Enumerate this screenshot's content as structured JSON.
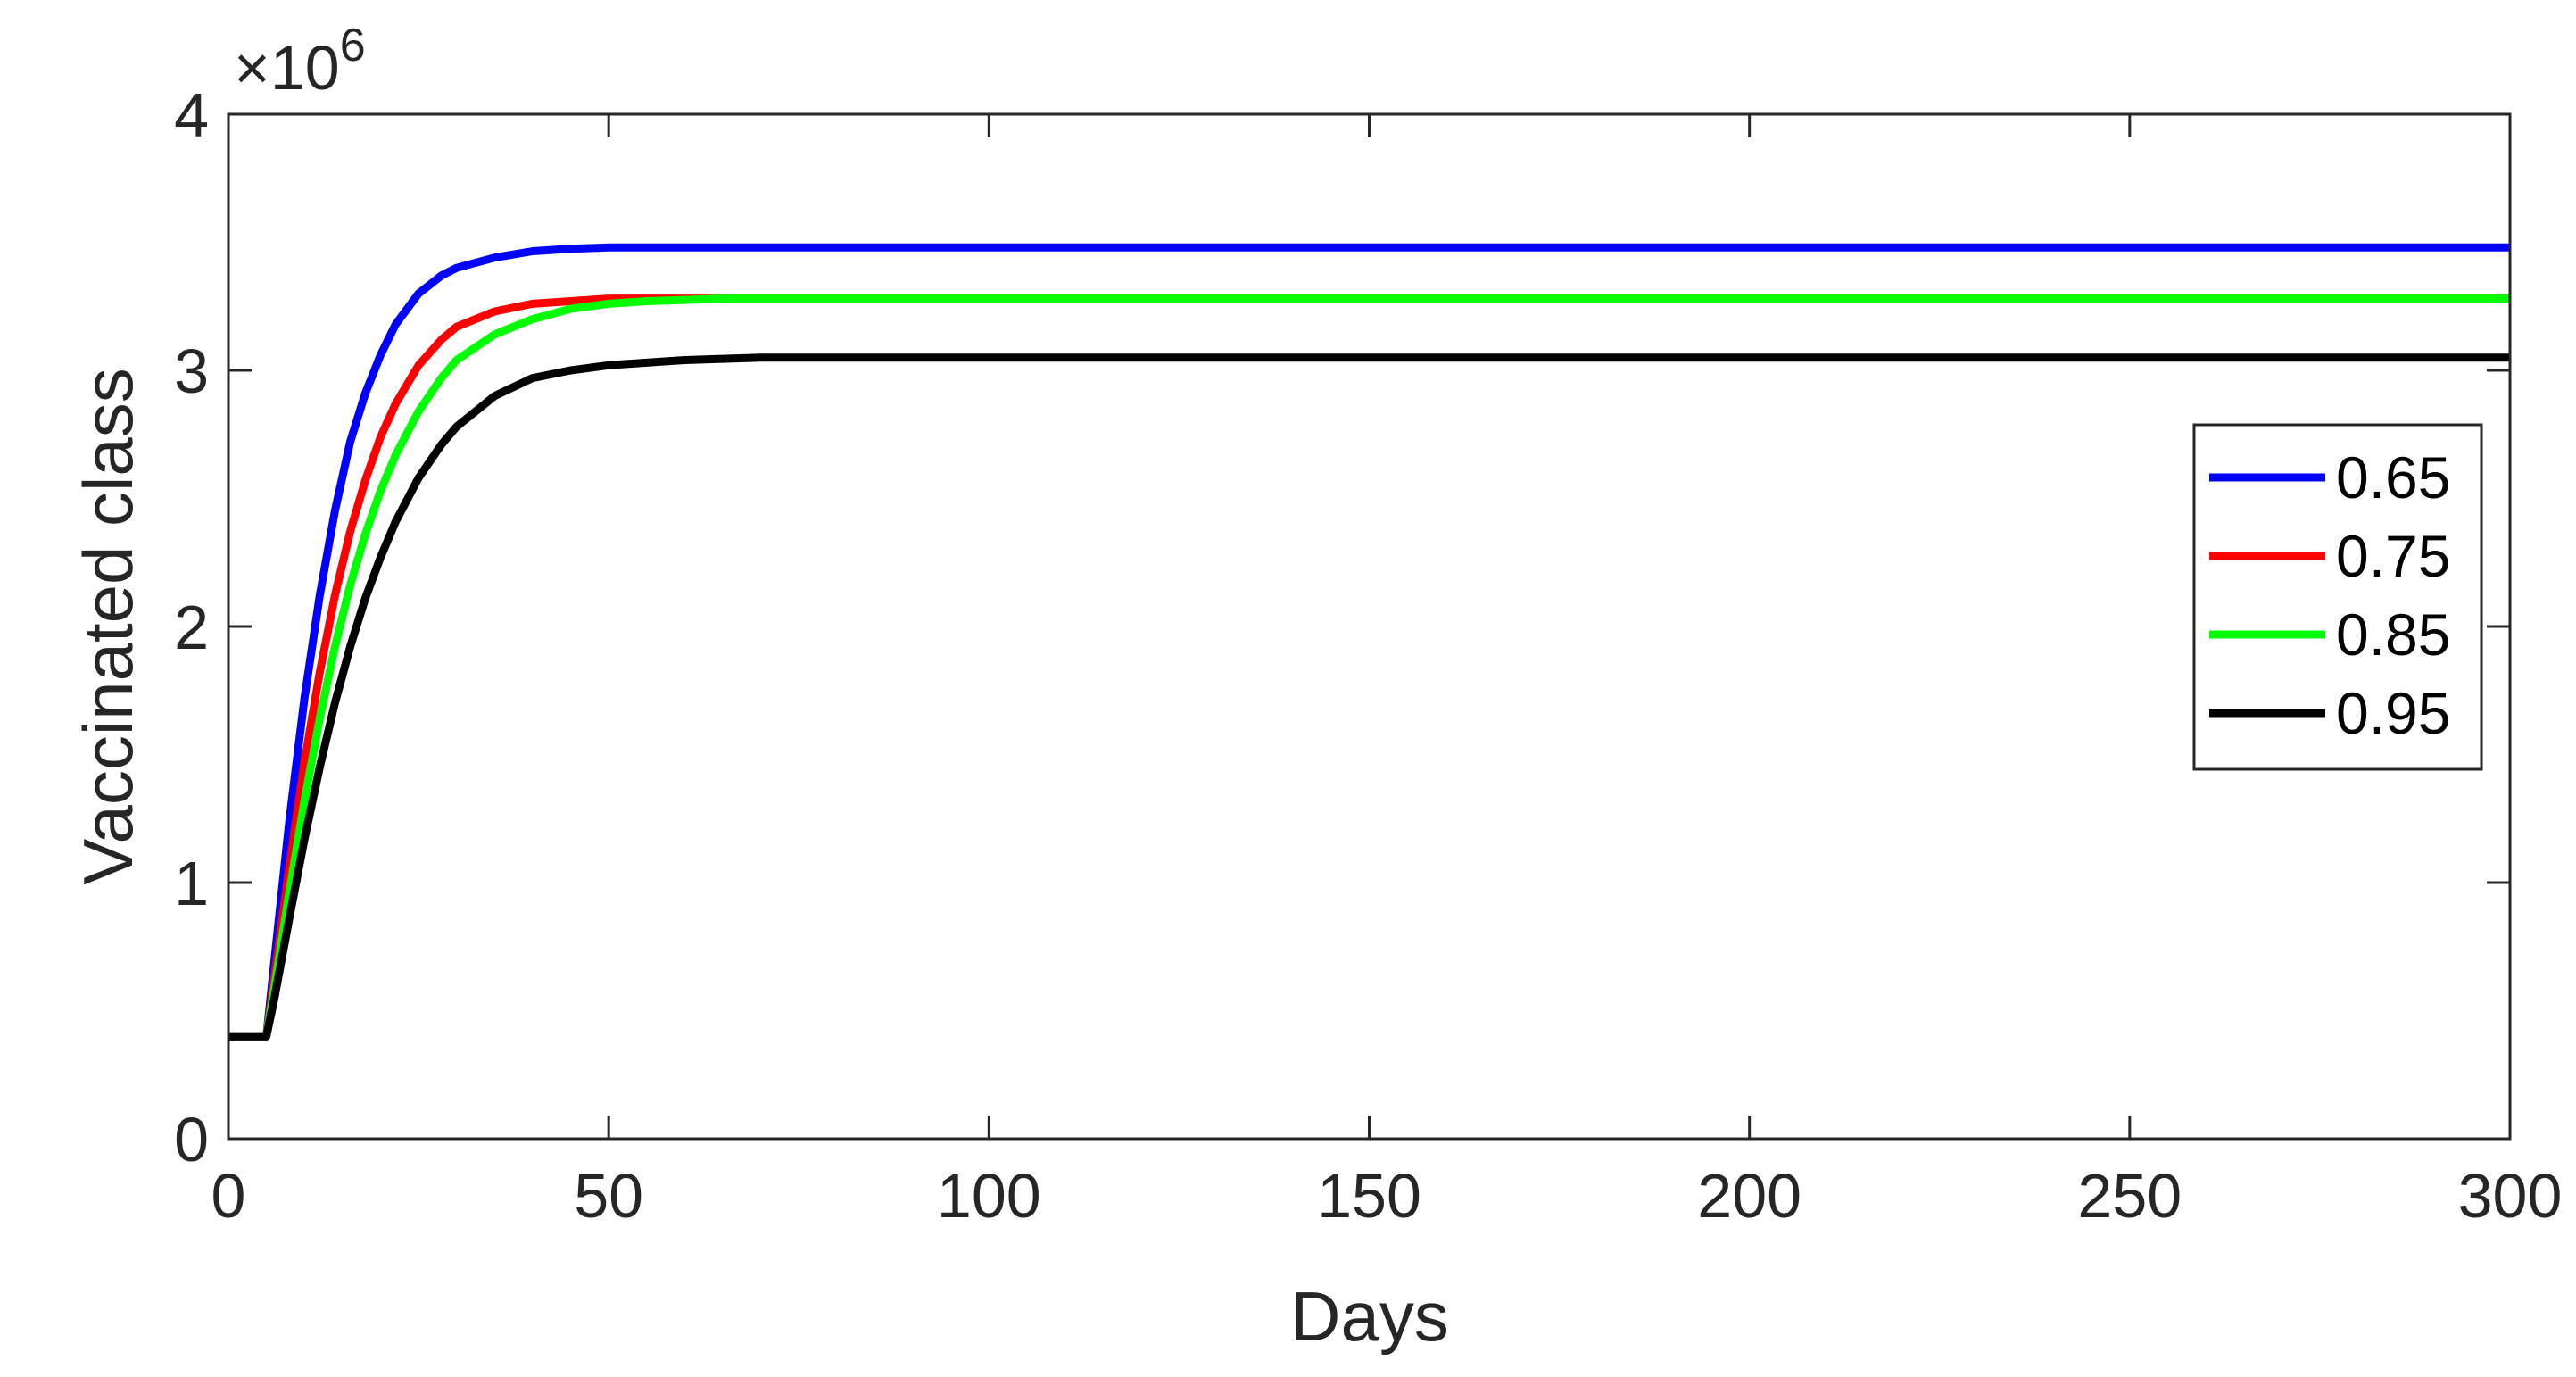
{
  "chart_data": {
    "type": "line",
    "title": "",
    "xlabel": "Days",
    "ylabel": "Vaccinated class",
    "xlim": [
      0,
      300
    ],
    "ylim": [
      0,
      4
    ],
    "y_exponent_label": "×10",
    "y_exponent_power": "6",
    "xticks": [
      0,
      50,
      100,
      150,
      200,
      250,
      300
    ],
    "xtick_labels": [
      "0",
      "50",
      "100",
      "150",
      "200",
      "250",
      "300"
    ],
    "yticks": [
      0,
      1,
      2,
      3,
      4
    ],
    "ytick_labels": [
      "0",
      "1",
      "2",
      "3",
      "4"
    ],
    "grid": false,
    "legend_position": "right",
    "x": [
      0,
      5,
      6,
      8,
      10,
      12,
      14,
      16,
      18,
      20,
      22,
      25,
      28,
      30,
      35,
      40,
      45,
      50,
      55,
      60,
      65,
      70,
      80,
      90,
      100,
      120,
      150,
      200,
      250,
      300
    ],
    "series": [
      {
        "name": "0.65",
        "color": "#0000ff",
        "values": [
          0.4,
          0.4,
          0.68,
          1.24,
          1.72,
          2.12,
          2.45,
          2.72,
          2.91,
          3.06,
          3.18,
          3.3,
          3.37,
          3.4,
          3.44,
          3.465,
          3.475,
          3.48,
          3.48,
          3.48,
          3.48,
          3.48,
          3.48,
          3.48,
          3.48,
          3.48,
          3.48,
          3.48,
          3.48,
          3.48
        ]
      },
      {
        "name": "0.75",
        "color": "#ff0000",
        "values": [
          0.4,
          0.4,
          0.62,
          1.06,
          1.47,
          1.82,
          2.12,
          2.37,
          2.57,
          2.74,
          2.87,
          3.02,
          3.12,
          3.17,
          3.23,
          3.26,
          3.27,
          3.28,
          3.28,
          3.28,
          3.28,
          3.28,
          3.28,
          3.28,
          3.28,
          3.28,
          3.28,
          3.28,
          3.28,
          3.28
        ]
      },
      {
        "name": "0.85",
        "color": "#00ff00",
        "values": [
          0.4,
          0.4,
          0.58,
          0.96,
          1.32,
          1.64,
          1.92,
          2.16,
          2.36,
          2.53,
          2.67,
          2.84,
          2.97,
          3.04,
          3.14,
          3.2,
          3.24,
          3.26,
          3.27,
          3.275,
          3.28,
          3.28,
          3.28,
          3.28,
          3.28,
          3.28,
          3.28,
          3.28,
          3.28,
          3.28
        ]
      },
      {
        "name": "0.95",
        "color": "#000000",
        "values": [
          0.4,
          0.4,
          0.54,
          0.86,
          1.17,
          1.45,
          1.7,
          1.92,
          2.11,
          2.27,
          2.41,
          2.58,
          2.71,
          2.78,
          2.9,
          2.97,
          3.0,
          3.02,
          3.03,
          3.04,
          3.045,
          3.05,
          3.05,
          3.05,
          3.05,
          3.05,
          3.05,
          3.05,
          3.05,
          3.05
        ]
      }
    ]
  }
}
